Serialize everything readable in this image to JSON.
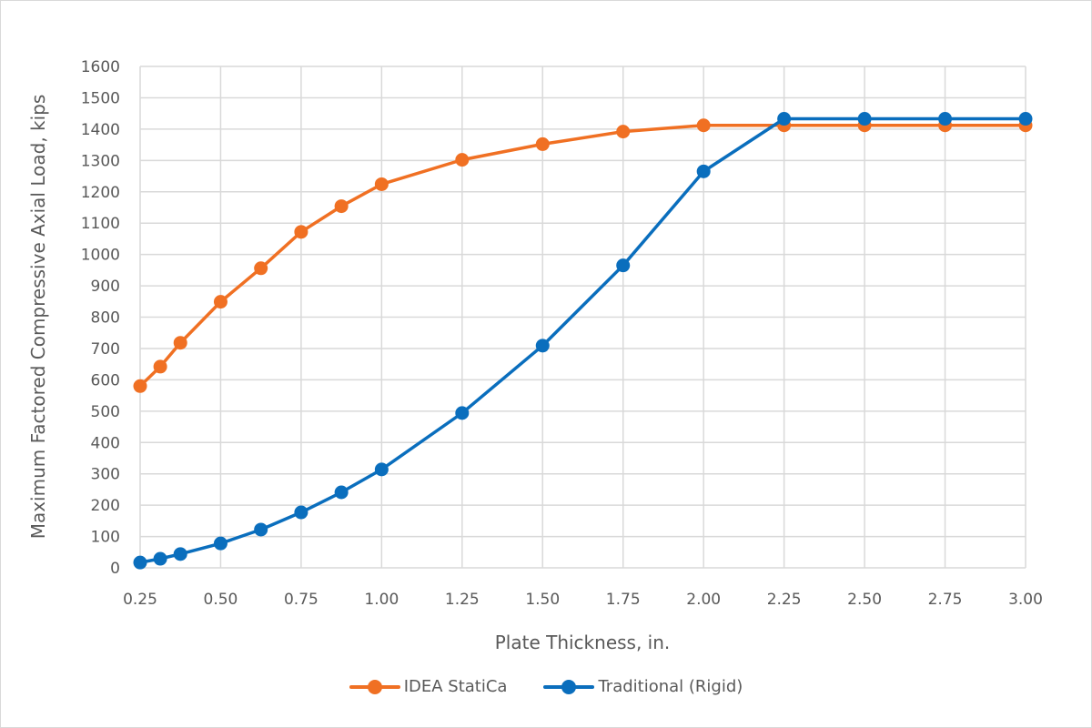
{
  "chart_data": {
    "type": "line",
    "title": "",
    "xlabel": "Plate Thickness, in.",
    "ylabel": "Maximum Factored Compressive Axial Load, kips",
    "xlim": [
      0.25,
      3.0
    ],
    "ylim": [
      0,
      1600
    ],
    "x_ticks": [
      "0.25",
      "0.50",
      "0.75",
      "1.00",
      "1.25",
      "1.50",
      "1.75",
      "2.00",
      "2.25",
      "2.50",
      "2.75",
      "3.00"
    ],
    "y_ticks": [
      "0",
      "100",
      "200",
      "300",
      "400",
      "500",
      "600",
      "700",
      "800",
      "900",
      "1000",
      "1100",
      "1200",
      "1300",
      "1400",
      "1500",
      "1600"
    ],
    "grid": true,
    "legend_position": "bottom",
    "series": [
      {
        "name": "IDEA StatiCa",
        "color": "#f07023",
        "x": [
          0.25,
          0.3125,
          0.375,
          0.5,
          0.625,
          0.75,
          0.875,
          1.0,
          1.25,
          1.5,
          1.75,
          2.0,
          2.25,
          2.5,
          2.75,
          3.0
        ],
        "values": [
          580,
          642,
          718,
          849,
          956,
          1072,
          1154,
          1224,
          1302,
          1352,
          1392,
          1412,
          1412,
          1412,
          1412,
          1412
        ]
      },
      {
        "name": "Traditional (Rigid)",
        "color": "#0a6ebd",
        "x": [
          0.25,
          0.3125,
          0.375,
          0.5,
          0.625,
          0.75,
          0.875,
          1.0,
          1.25,
          1.5,
          1.75,
          2.0,
          2.25,
          2.5,
          2.75,
          3.0
        ],
        "values": [
          17,
          29,
          44,
          78,
          122,
          177,
          241,
          314,
          494,
          709,
          965,
          1265,
          1433,
          1433,
          1433,
          1433
        ]
      }
    ]
  }
}
